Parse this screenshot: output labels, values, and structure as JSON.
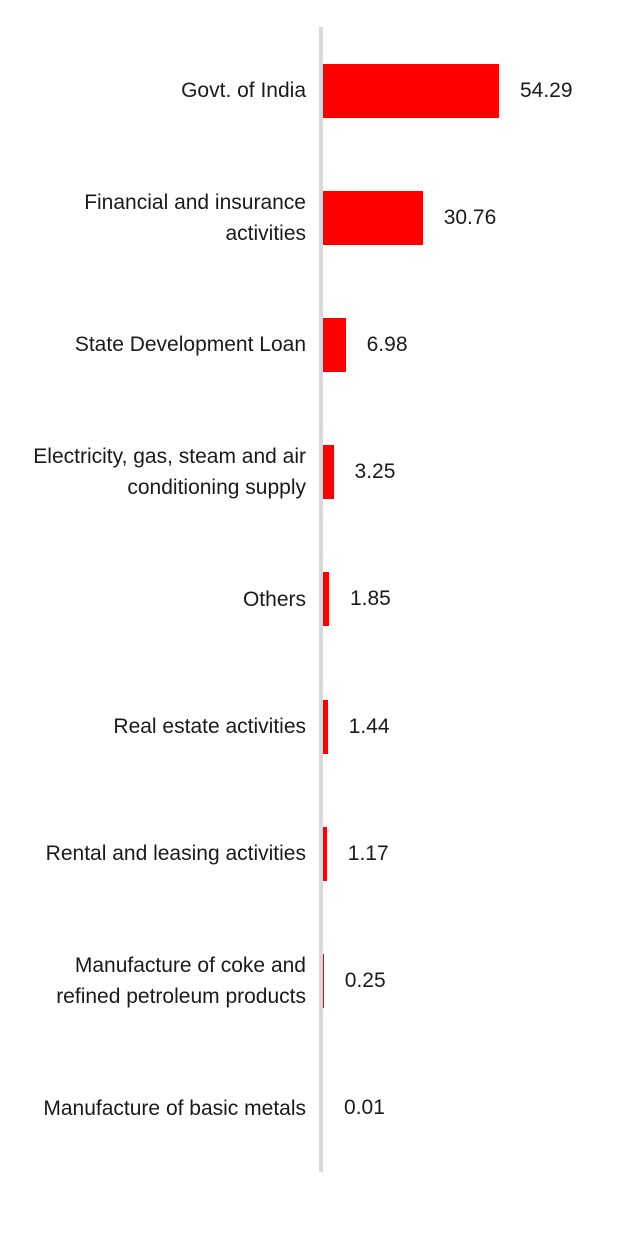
{
  "chart_data": {
    "type": "bar",
    "orientation": "horizontal",
    "categories": [
      "Govt. of India",
      "Financial and insurance\nactivities",
      "State Development Loan",
      "Electricity, gas, steam and air\nconditioning supply",
      "Others",
      "Real estate activities",
      "Rental and leasing activities",
      "Manufacture of coke and\nrefined petroleum products",
      "Manufacture of basic metals"
    ],
    "values": [
      54.29,
      30.76,
      6.98,
      3.25,
      1.85,
      1.44,
      1.17,
      0.25,
      0.01
    ],
    "value_labels": [
      "54.29",
      "30.76",
      "6.98",
      "3.25",
      "1.85",
      "1.44",
      "1.17",
      "0.25",
      "0.01"
    ],
    "xlim": [
      0,
      60
    ],
    "grid": false,
    "legend": false,
    "data_label_position": "outside-end",
    "bar_color": "#FF0000",
    "axis_line_color": "#D9D9D9",
    "text_color": "#1A1A1A"
  }
}
